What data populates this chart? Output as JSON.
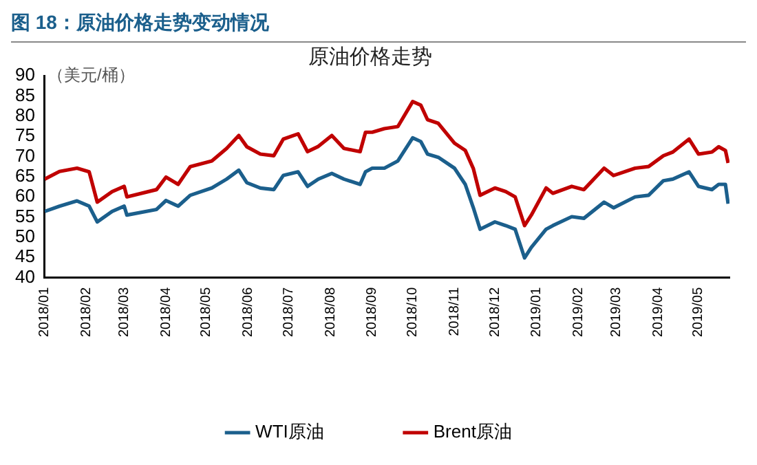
{
  "chart_data": {
    "type": "line",
    "title": "图 18：原油价格走势变动情况",
    "subtitle": "原油价格走势",
    "ylabel": "（美元/桶）",
    "x": [
      "2018-01-01",
      "2018-01-12",
      "2018-01-25",
      "2018-02-03",
      "2018-02-09",
      "2018-02-20",
      "2018-03-01",
      "2018-03-03",
      "2018-03-25",
      "2018-04-01",
      "2018-04-10",
      "2018-04-19",
      "2018-05-05",
      "2018-05-16",
      "2018-05-25",
      "2018-05-31",
      "2018-06-10",
      "2018-06-20",
      "2018-06-27",
      "2018-07-08",
      "2018-07-15",
      "2018-07-23",
      "2018-08-02",
      "2018-08-11",
      "2018-08-23",
      "2018-08-27",
      "2018-09-01",
      "2018-09-10",
      "2018-09-20",
      "2018-10-01",
      "2018-10-07",
      "2018-10-12",
      "2018-10-20",
      "2018-11-01",
      "2018-11-09",
      "2018-11-15",
      "2018-11-20",
      "2018-12-01",
      "2018-12-09",
      "2018-12-16",
      "2018-12-23",
      "2018-12-28",
      "2019-01-08",
      "2019-01-13",
      "2019-01-27",
      "2019-02-05",
      "2019-02-20",
      "2019-02-27",
      "2019-03-15",
      "2019-03-25",
      "2019-04-05",
      "2019-04-12",
      "2019-04-24",
      "2019-05-01",
      "2019-05-11",
      "2019-05-16",
      "2019-05-21",
      "2019-05-23"
    ],
    "series": [
      {
        "name": "WTI原油",
        "color": "#1b5f8c",
        "values": [
          56.4,
          57.7,
          59,
          57.7,
          53.8,
          56.4,
          57.7,
          55.5,
          56.9,
          59.1,
          57.7,
          60.4,
          62.2,
          64.4,
          66.6,
          63.5,
          62.2,
          61.8,
          65.3,
          66.2,
          62.6,
          64.4,
          65.8,
          64.4,
          63.1,
          66.2,
          67.1,
          67.1,
          68.9,
          74.6,
          73.7,
          70.6,
          69.8,
          67.1,
          63.1,
          57.3,
          52,
          53.8,
          52.9,
          52,
          44.9,
          47.5,
          52,
          52.9,
          55.1,
          54.7,
          58.7,
          57.3,
          60,
          60.4,
          64,
          64.4,
          66.2,
          62.6,
          61.8,
          63.1,
          63.1,
          58.3
        ]
      },
      {
        "name": "Brent原油",
        "color": "#c00000",
        "values": [
          64.4,
          66.3,
          67.1,
          66.2,
          58.7,
          61.3,
          62.6,
          60,
          61.8,
          64.9,
          63.1,
          67.5,
          68.9,
          72,
          75.2,
          72.4,
          70.6,
          70.2,
          74.3,
          75.6,
          71.2,
          72.5,
          75.2,
          72,
          71.2,
          76,
          76,
          76.9,
          77.4,
          83.6,
          82.7,
          79.1,
          78.2,
          73.3,
          71.5,
          67,
          60.4,
          62.2,
          61.3,
          60,
          52.9,
          55.5,
          62.2,
          60.9,
          62.6,
          61.8,
          67.1,
          65.3,
          67.1,
          67.5,
          70.2,
          71.1,
          74.3,
          70.6,
          71.1,
          72.4,
          71.5,
          68.4
        ]
      }
    ],
    "xlim": [
      "2018-01-01",
      "2019-05-24"
    ],
    "xticks": [
      {
        "value": "2018-01-01",
        "label": "2018/01"
      },
      {
        "value": "2018-02-01",
        "label": "2018/02"
      },
      {
        "value": "2018-03-01",
        "label": "2018/03"
      },
      {
        "value": "2018-04-01",
        "label": "2018/04"
      },
      {
        "value": "2018-05-01",
        "label": "2018/05"
      },
      {
        "value": "2018-06-01",
        "label": "2018/06"
      },
      {
        "value": "2018-07-01",
        "label": "2018/07"
      },
      {
        "value": "2018-08-01",
        "label": "2018/08"
      },
      {
        "value": "2018-09-01",
        "label": "2018/09"
      },
      {
        "value": "2018-10-01",
        "label": "2018/10"
      },
      {
        "value": "2018-11-01",
        "label": "2018/11"
      },
      {
        "value": "2018-12-01",
        "label": "2018/12"
      },
      {
        "value": "2019-01-01",
        "label": "2019/01"
      },
      {
        "value": "2019-02-01",
        "label": "2019/02"
      },
      {
        "value": "2019-03-01",
        "label": "2019/03"
      },
      {
        "value": "2019-04-01",
        "label": "2019/04"
      },
      {
        "value": "2019-05-01",
        "label": "2019/05"
      }
    ],
    "ylim": [
      40,
      90
    ],
    "yticks": [
      40,
      45,
      50,
      55,
      60,
      65,
      70,
      75,
      80,
      85,
      90
    ],
    "grid": false,
    "legend": "bottom",
    "marker": "none",
    "line_style": "solid"
  }
}
